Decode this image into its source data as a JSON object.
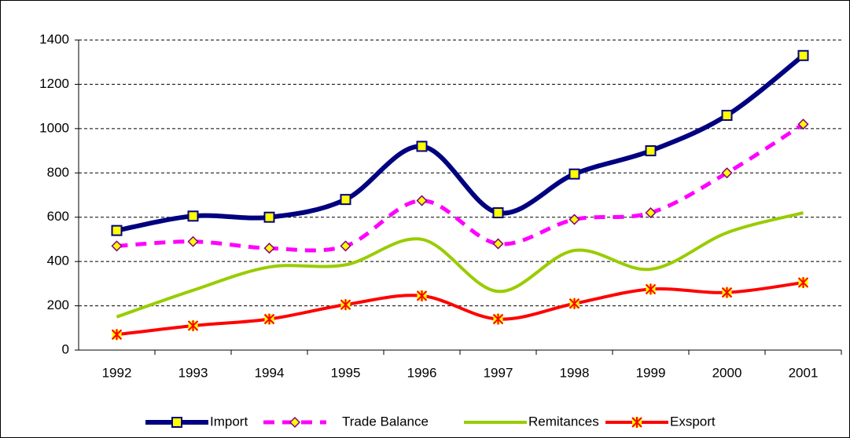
{
  "chart_data": {
    "type": "line",
    "categories": [
      "1992",
      "1993",
      "1994",
      "1995",
      "1996",
      "1997",
      "1998",
      "1999",
      "2000",
      "2001"
    ],
    "series": [
      {
        "name": "Import",
        "color": "#000080",
        "marker": "square",
        "values": [
          540,
          605,
          600,
          680,
          920,
          620,
          795,
          900,
          1060,
          1330
        ]
      },
      {
        "name": "Trade Balance",
        "color": "#ff00ff",
        "marker": "diamond",
        "dashed": true,
        "values": [
          470,
          490,
          460,
          470,
          675,
          480,
          590,
          620,
          800,
          1020
        ]
      },
      {
        "name": "Remitances",
        "color": "#99cc00",
        "values": [
          150,
          270,
          375,
          385,
          500,
          265,
          450,
          365,
          530,
          620
        ]
      },
      {
        "name": "Exsport",
        "color": "#ff0000",
        "marker": "asterisk",
        "values": [
          70,
          110,
          140,
          205,
          245,
          140,
          210,
          275,
          260,
          305
        ]
      }
    ],
    "ylim": [
      0,
      1400
    ],
    "yticks": [
      0,
      200,
      400,
      600,
      800,
      1000,
      1200,
      1400
    ],
    "grid": true,
    "legend": "bottom"
  }
}
